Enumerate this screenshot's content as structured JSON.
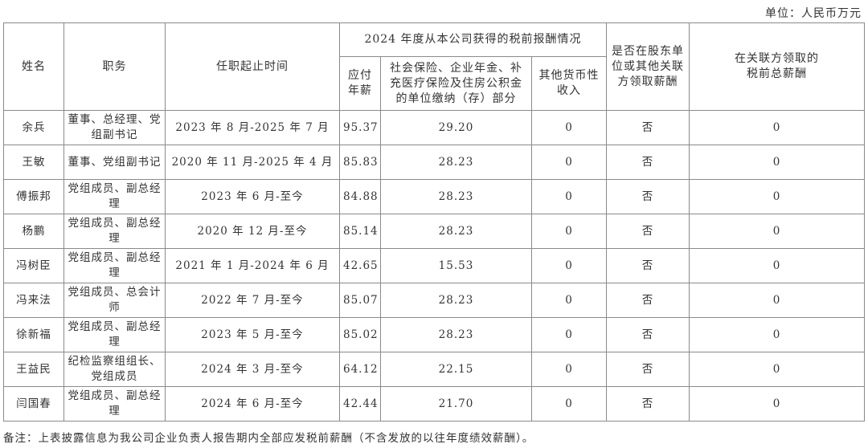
{
  "unit_label": "单位：人民币万元",
  "headers": {
    "name": "姓名",
    "position": "职务",
    "term": "任职起止时间",
    "group": "2024 年度从本公司获得的税前报酬情况",
    "salary": "应付年薪",
    "social": "社会保险、企业年金、补充医疗保险及住房公积金的单位缴纳（存）部分",
    "other": "其他货币性收入",
    "shareholder": "是否在股东单位或其他关联方领取薪酬",
    "related": "在关联方领取的税前总薪酬"
  },
  "rows": [
    {
      "name": "余兵",
      "position": "董事、总经理、党组副书记",
      "term": "2023 年 8 月-2025 年 7 月",
      "salary": "95.37",
      "social": "29.20",
      "other": "0",
      "shareholder": "否",
      "related": "0"
    },
    {
      "name": "王敏",
      "position": "董事、党组副书记",
      "term": "2020 年 11 月-2025 年 4 月",
      "salary": "85.83",
      "social": "28.23",
      "other": "0",
      "shareholder": "否",
      "related": "0"
    },
    {
      "name": "傅振邦",
      "position": "党组成员、副总经理",
      "term": "2023 年 6 月-至今",
      "salary": "84.88",
      "social": "28.23",
      "other": "0",
      "shareholder": "否",
      "related": "0"
    },
    {
      "name": "杨鹏",
      "position": "党组成员、副总经理",
      "term": "2020 年 12 月-至今",
      "salary": "85.14",
      "social": "28.23",
      "other": "0",
      "shareholder": "否",
      "related": "0"
    },
    {
      "name": "冯树臣",
      "position": "党组成员、副总经理",
      "term": "2021 年 1 月-2024 年 6 月",
      "salary": "42.65",
      "social": "15.53",
      "other": "0",
      "shareholder": "否",
      "related": "0"
    },
    {
      "name": "冯来法",
      "position": "党组成员、总会计师",
      "term": "2022 年 7 月-至今",
      "salary": "85.07",
      "social": "28.23",
      "other": "0",
      "shareholder": "否",
      "related": "0"
    },
    {
      "name": "徐新福",
      "position": "党组成员、副总经理",
      "term": "2023 年 5 月-至今",
      "salary": "85.02",
      "social": "28.23",
      "other": "0",
      "shareholder": "否",
      "related": "0"
    },
    {
      "name": "王益民",
      "position": "纪检监察组组长、党组成员",
      "term": "2024 年 3 月-至今",
      "salary": "64.12",
      "social": "22.15",
      "other": "0",
      "shareholder": "否",
      "related": "0"
    },
    {
      "name": "闫国春",
      "position": "党组成员、副总经理",
      "term": "2024 年 6 月-至今",
      "salary": "42.44",
      "social": "21.70",
      "other": "0",
      "shareholder": "否",
      "related": "0"
    }
  ],
  "note": "备注：上表披露信息为我公司企业负责人报告期内全部应发税前薪酬（不含发放的以往年度绩效薪酬）。"
}
